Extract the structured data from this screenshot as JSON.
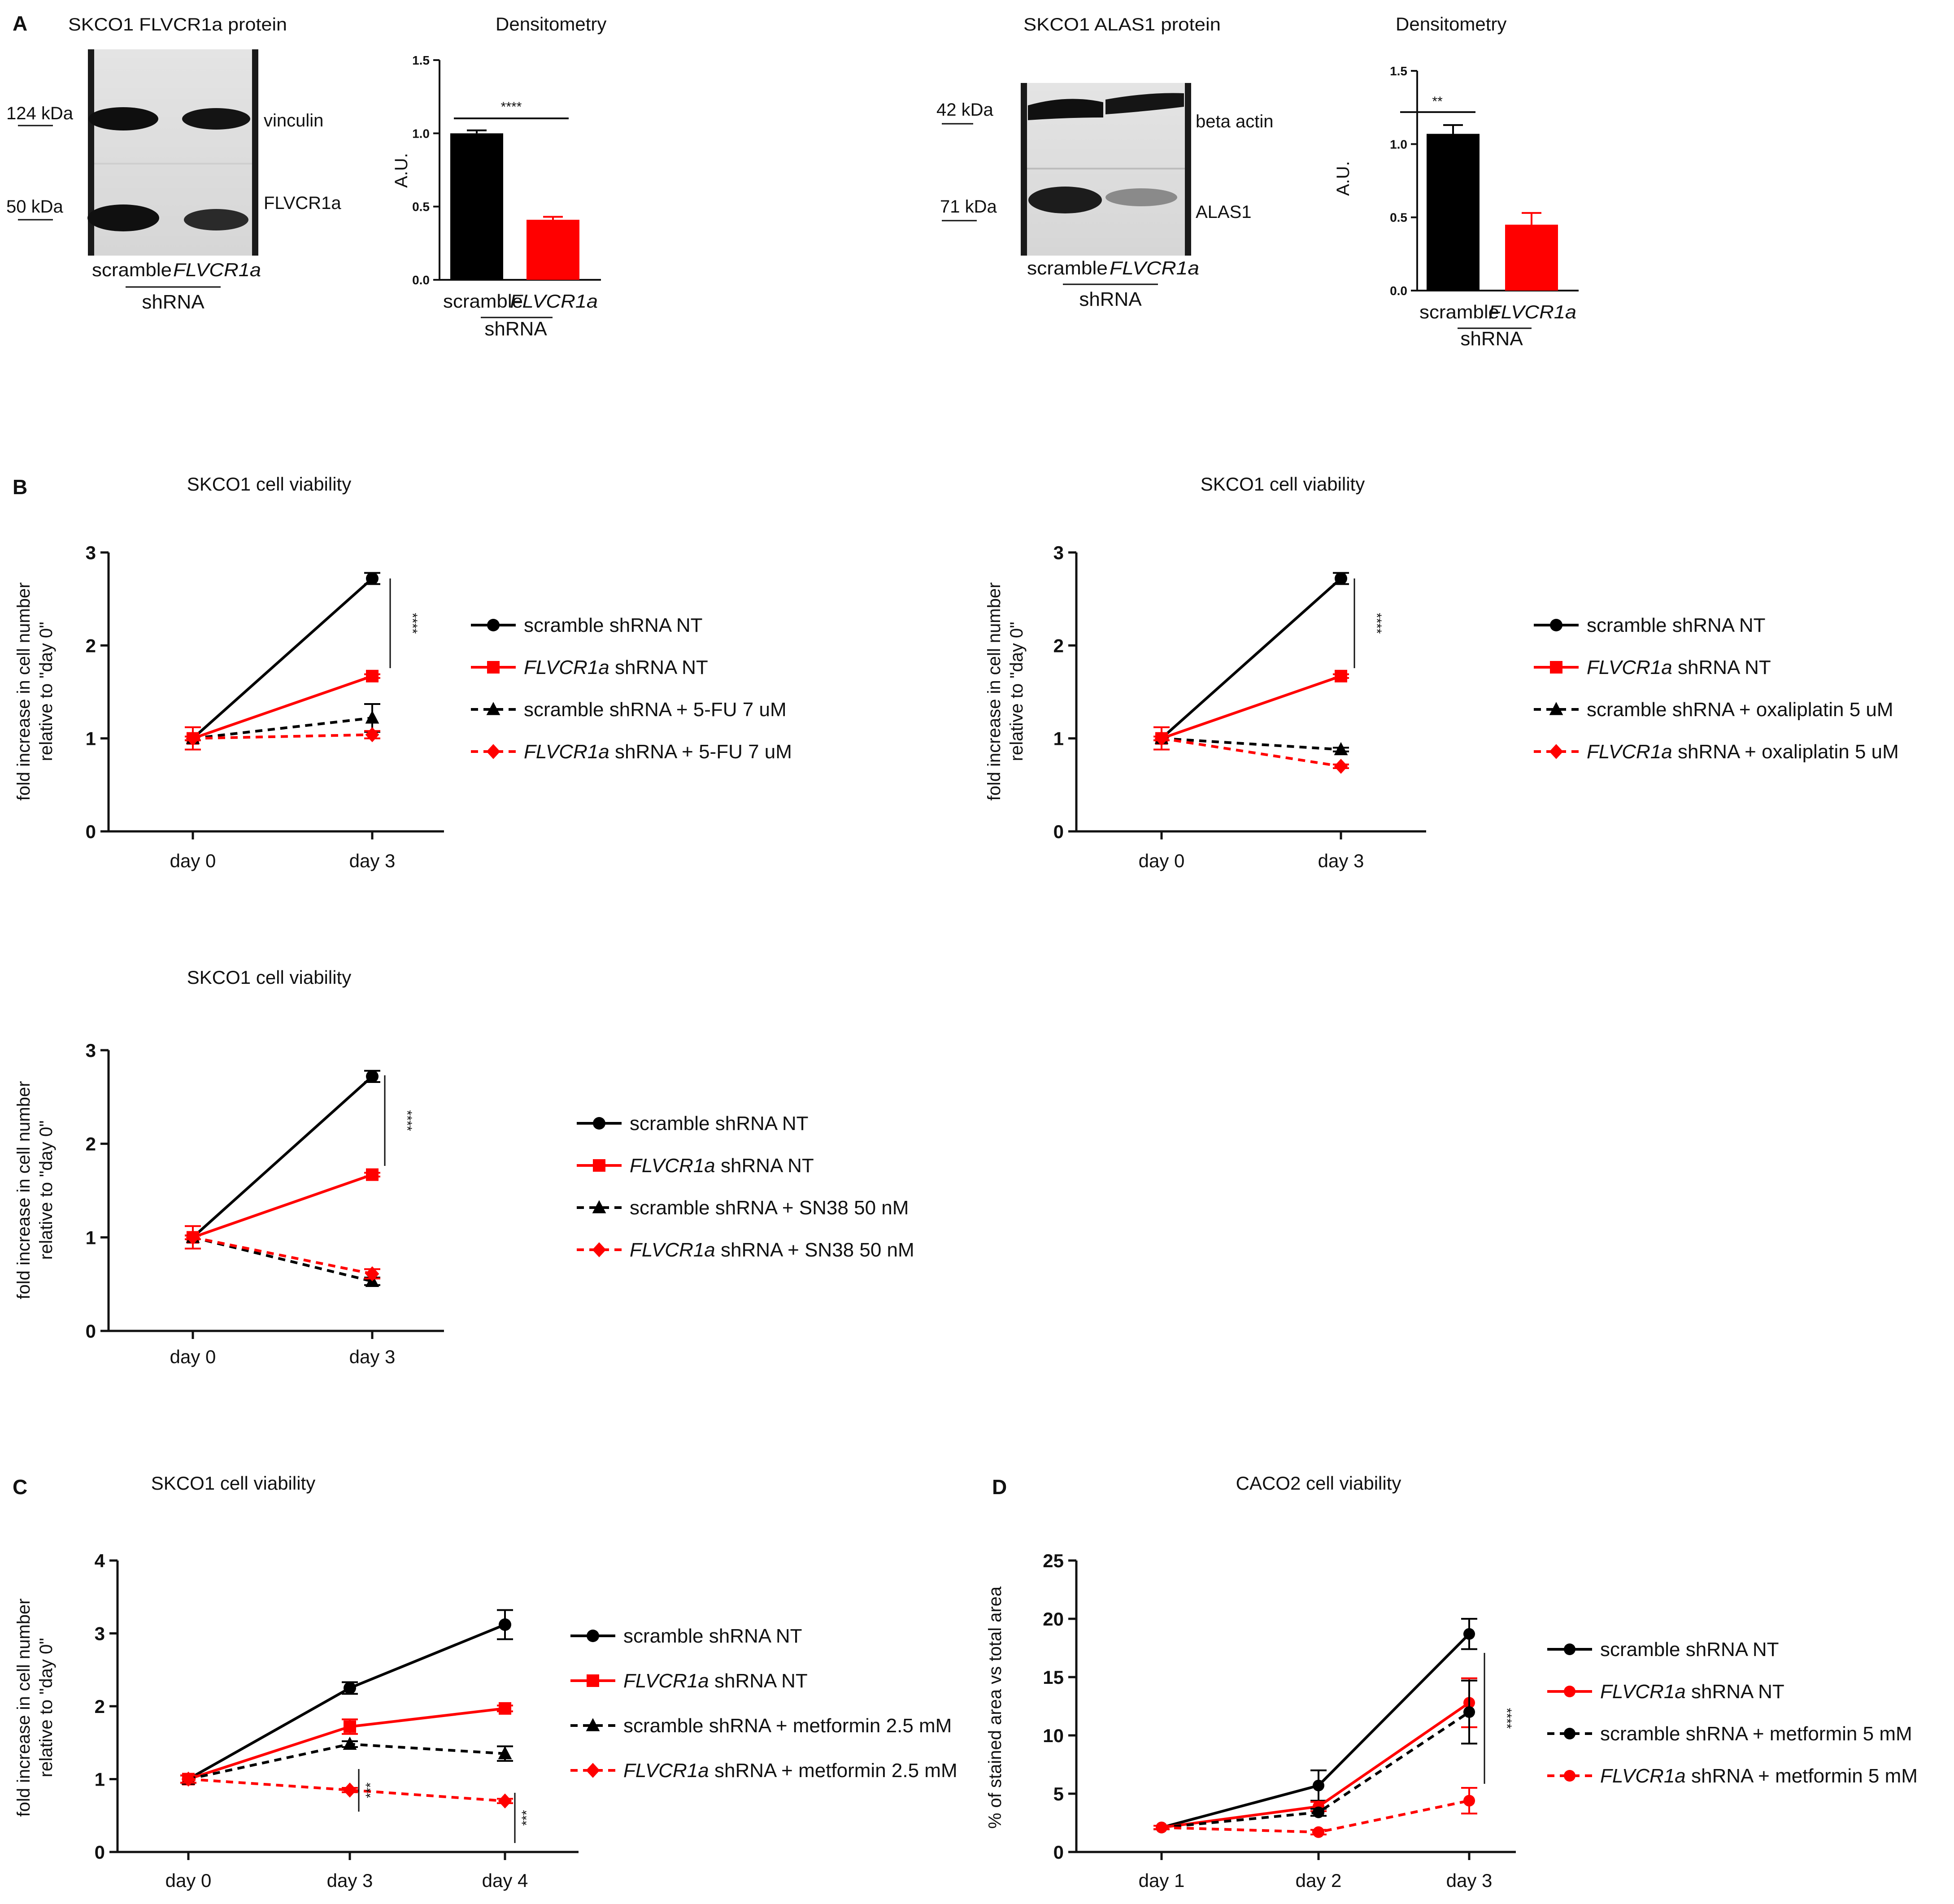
{
  "panel_labels": {
    "A": "A",
    "B": "B",
    "C": "C",
    "D": "D"
  },
  "blots": [
    {
      "title": "SKCO1 FLVCR1a protein",
      "markers": [
        "124 kDa",
        "50 kDa"
      ],
      "bands": [
        "vinculin",
        "FLVCR1a"
      ],
      "lanes": [
        "scramble",
        "FLVCR1a"
      ],
      "group": "shRNA"
    },
    {
      "title": "SKCO1 ALAS1 protein",
      "markers": [
        "42 kDa",
        "71 kDa"
      ],
      "bands": [
        "beta actin",
        "ALAS1"
      ],
      "lanes": [
        "scramble",
        "FLVCR1a"
      ],
      "group": "shRNA"
    }
  ],
  "chart_data": [
    {
      "id": "A1",
      "type": "bar",
      "title": "Densitometry",
      "ylabel": "A.U.",
      "ylim": [
        0,
        1.5
      ],
      "yticks": [
        "0.0",
        "0.5",
        "1.0",
        "1.5"
      ],
      "categories": [
        "scramble",
        "FLVCR1a"
      ],
      "group_label": "shRNA",
      "values": [
        1.0,
        0.41
      ],
      "errors": [
        0.02,
        0.02
      ],
      "colors": [
        "#000000",
        "#ff0000"
      ],
      "significance": "****"
    },
    {
      "id": "A2",
      "type": "bar",
      "title": "Densitometry",
      "ylabel": "A.U.",
      "ylim": [
        0,
        1.5
      ],
      "yticks": [
        "0.0",
        "0.5",
        "1.0",
        "1.5"
      ],
      "categories": [
        "scramble",
        "FLVCR1a"
      ],
      "group_label": "shRNA",
      "values": [
        1.07,
        0.45
      ],
      "errors": [
        0.06,
        0.08
      ],
      "colors": [
        "#000000",
        "#ff0000"
      ],
      "significance": "**"
    },
    {
      "id": "B1",
      "type": "line",
      "title": "SKCO1 cell viability",
      "ylabel": [
        "fold increase in cell number",
        "relative to \"day 0\""
      ],
      "ylim": [
        0,
        3
      ],
      "yticks": [
        "0",
        "1",
        "2",
        "3"
      ],
      "categories": [
        "day 0",
        "day 3"
      ],
      "significance": "****",
      "series": [
        {
          "name": "scramble shRNA NT",
          "italic": "",
          "rest": "scramble shRNA NT",
          "values": [
            1.0,
            2.72
          ],
          "errors": [
            0.02,
            0.06
          ],
          "color": "#000000",
          "dash": false,
          "marker": "circle"
        },
        {
          "name": "FLVCR1a shRNA NT",
          "italic": "FLVCR1a",
          "rest": " shRNA NT",
          "values": [
            1.0,
            1.67
          ],
          "errors": [
            0.12,
            0.02
          ],
          "color": "#ff0000",
          "dash": false,
          "marker": "square"
        },
        {
          "name": "scramble shRNA + 5-FU 7 uM",
          "italic": "",
          "rest": "scramble shRNA + 5-FU 7 uM",
          "values": [
            1.0,
            1.22
          ],
          "errors": [
            0.02,
            0.15
          ],
          "color": "#000000",
          "dash": true,
          "marker": "triangle"
        },
        {
          "name": "FLVCR1a shRNA + 5-FU 7 uM",
          "italic": "FLVCR1a",
          "rest": " shRNA + 5-FU 7 uM",
          "values": [
            1.0,
            1.04
          ],
          "errors": [
            0.02,
            0.04
          ],
          "color": "#ff0000",
          "dash": true,
          "marker": "diamond"
        }
      ]
    },
    {
      "id": "B2",
      "type": "line",
      "title": "SKCO1 cell viability",
      "ylabel": [
        "fold increase in cell number",
        "relative to \"day 0\""
      ],
      "ylim": [
        0,
        3
      ],
      "yticks": [
        "0",
        "1",
        "2",
        "3"
      ],
      "categories": [
        "day 0",
        "day 3"
      ],
      "significance": "****",
      "series": [
        {
          "name": "scramble shRNA NT",
          "italic": "",
          "rest": "scramble shRNA NT",
          "values": [
            1.0,
            2.72
          ],
          "errors": [
            0.02,
            0.06
          ],
          "color": "#000000",
          "dash": false,
          "marker": "circle"
        },
        {
          "name": "FLVCR1a shRNA NT",
          "italic": "FLVCR1a",
          "rest": " shRNA NT",
          "values": [
            1.0,
            1.67
          ],
          "errors": [
            0.12,
            0.02
          ],
          "color": "#ff0000",
          "dash": false,
          "marker": "square"
        },
        {
          "name": "scramble shRNA + oxaliplatin 5 uM",
          "italic": "",
          "rest": "scramble shRNA + oxaliplatin 5 uM",
          "values": [
            1.0,
            0.88
          ],
          "errors": [
            0.02,
            0.02
          ],
          "color": "#000000",
          "dash": true,
          "marker": "triangle"
        },
        {
          "name": "FLVCR1a shRNA + oxaliplatin 5 uM",
          "italic": "FLVCR1a",
          "rest": " shRNA + oxaliplatin 5 uM",
          "values": [
            1.0,
            0.7
          ],
          "errors": [
            0.02,
            0.02
          ],
          "color": "#ff0000",
          "dash": true,
          "marker": "diamond"
        }
      ]
    },
    {
      "id": "B3",
      "type": "line",
      "title": "SKCO1 cell viability",
      "ylabel": [
        "fold increase in cell number",
        "relative to \"day 0\""
      ],
      "ylim": [
        0,
        3
      ],
      "yticks": [
        "0",
        "1",
        "2",
        "3"
      ],
      "categories": [
        "day 0",
        "day 3"
      ],
      "significance": "****",
      "series": [
        {
          "name": "scramble shRNA NT",
          "italic": "",
          "rest": "scramble shRNA NT",
          "values": [
            1.0,
            2.72
          ],
          "errors": [
            0.02,
            0.06
          ],
          "color": "#000000",
          "dash": false,
          "marker": "circle"
        },
        {
          "name": "FLVCR1a shRNA NT",
          "italic": "FLVCR1a",
          "rest": " shRNA NT",
          "values": [
            1.0,
            1.67
          ],
          "errors": [
            0.12,
            0.02
          ],
          "color": "#ff0000",
          "dash": false,
          "marker": "square"
        },
        {
          "name": "scramble shRNA + SN38 50 nM",
          "italic": "",
          "rest": "scramble shRNA + SN38 50 nM",
          "values": [
            1.0,
            0.53
          ],
          "errors": [
            0.02,
            0.04
          ],
          "color": "#000000",
          "dash": true,
          "marker": "triangle"
        },
        {
          "name": "FLVCR1a shRNA + SN38 50 nM",
          "italic": "FLVCR1a",
          "rest": " shRNA + SN38 50 nM",
          "values": [
            1.0,
            0.61
          ],
          "errors": [
            0.02,
            0.05
          ],
          "color": "#ff0000",
          "dash": true,
          "marker": "diamond"
        }
      ]
    },
    {
      "id": "C",
      "type": "line",
      "title": "SKCO1 cell viability",
      "ylabel": [
        "fold increase in cell number",
        "relative to \"day 0\""
      ],
      "ylim": [
        0,
        4
      ],
      "yticks": [
        "0",
        "1",
        "2",
        "3",
        "4"
      ],
      "categories": [
        "day 0",
        "day 3",
        "day 4"
      ],
      "significance": [
        "***",
        "***"
      ],
      "series": [
        {
          "name": "scramble shRNA NT",
          "italic": "",
          "rest": "scramble shRNA NT",
          "values": [
            1.0,
            2.25,
            3.12
          ],
          "errors": [
            0.05,
            0.08,
            0.2
          ],
          "color": "#000000",
          "dash": false,
          "marker": "circle"
        },
        {
          "name": "FLVCR1a shRNA NT",
          "italic": "FLVCR1a",
          "rest": " shRNA NT",
          "values": [
            1.0,
            1.72,
            1.97
          ],
          "errors": [
            0.05,
            0.1,
            0.04
          ],
          "color": "#ff0000",
          "dash": false,
          "marker": "square"
        },
        {
          "name": "scramble shRNA + metformin 2.5 mM",
          "italic": "",
          "rest": "scramble shRNA + metformin 2.5 mM",
          "values": [
            1.0,
            1.48,
            1.35
          ],
          "errors": [
            0.05,
            0.04,
            0.1
          ],
          "color": "#000000",
          "dash": true,
          "marker": "triangle"
        },
        {
          "name": "FLVCR1a shRNA + metformin 2.5 mM",
          "italic": "FLVCR1a",
          "rest": " shRNA + metformin 2.5 mM",
          "values": [
            1.0,
            0.85,
            0.7
          ],
          "errors": [
            0.05,
            0.03,
            0.03
          ],
          "color": "#ff0000",
          "dash": true,
          "marker": "diamond"
        }
      ]
    },
    {
      "id": "D",
      "type": "line",
      "title": "CACO2 cell viability",
      "ylabel": [
        "% of stained area vs total area"
      ],
      "ylim": [
        0,
        25
      ],
      "yticks": [
        "0",
        "5",
        "10",
        "15",
        "20",
        "25"
      ],
      "categories": [
        "day 1",
        "day 2",
        "day 3"
      ],
      "significance": "****",
      "series": [
        {
          "name": "scramble shRNA NT",
          "italic": "",
          "rest": "scramble shRNA NT",
          "values": [
            2.1,
            5.7,
            18.7
          ],
          "errors": [
            0.15,
            1.3,
            1.3
          ],
          "color": "#000000",
          "dash": false,
          "marker": "circle"
        },
        {
          "name": "FLVCR1a shRNA NT",
          "italic": "FLVCR1a",
          "rest": " shRNA NT",
          "values": [
            2.1,
            3.9,
            12.8
          ],
          "errors": [
            0.15,
            0.4,
            2.1
          ],
          "color": "#ff0000",
          "dash": false,
          "marker": "circle"
        },
        {
          "name": "scramble shRNA + metformin 5 mM",
          "italic": "",
          "rest": "scramble shRNA + metformin 5 mM",
          "values": [
            2.1,
            3.4,
            12.0
          ],
          "errors": [
            0.15,
            0.3,
            2.7
          ],
          "color": "#000000",
          "dash": true,
          "marker": "circle"
        },
        {
          "name": "FLVCR1a shRNA + metformin 5 mM",
          "italic": "FLVCR1a",
          "rest": " shRNA + metformin 5 mM",
          "values": [
            2.1,
            1.7,
            4.4
          ],
          "errors": [
            0.15,
            0.2,
            1.1
          ],
          "color": "#ff0000",
          "dash": true,
          "marker": "circle"
        }
      ]
    }
  ]
}
